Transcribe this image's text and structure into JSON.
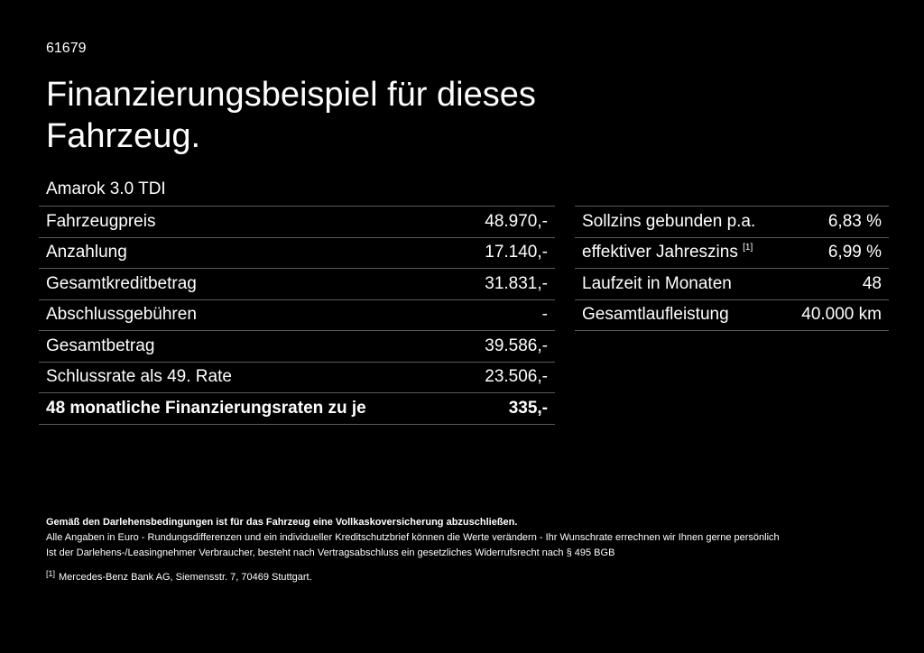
{
  "offer_id": "61679",
  "title": "Finanzierungsbeispiel für dieses Fahrzeug.",
  "model": "Amarok 3.0 TDI",
  "left_table": [
    {
      "label": "Fahrzeugpreis",
      "value": "48.970,-"
    },
    {
      "label": "Anzahlung",
      "value": "17.140,-"
    },
    {
      "label": "Gesamtkreditbetrag",
      "value": "31.831,-"
    },
    {
      "label": "Abschlussgebühren",
      "value": "-"
    },
    {
      "label": "Gesamtbetrag",
      "value": "39.586,-"
    },
    {
      "label": "Schlussrate als 49. Rate",
      "value": "23.506,-"
    },
    {
      "label": "48 monatliche Finanzierungsraten zu je",
      "value": "335,-"
    }
  ],
  "right_table": [
    {
      "label": "Sollzins gebunden p.a.",
      "value": "6,83 %"
    },
    {
      "label": "effektiver Jahreszins",
      "footnote_ref": "[1]",
      "value": "6,99 %"
    },
    {
      "label": "Laufzeit in Monaten",
      "value": "48"
    },
    {
      "label": "Gesamtlaufleistung",
      "value": "40.000 km"
    }
  ],
  "notes": {
    "insurance": "Gemäß den Darlehensbedingungen ist für das Fahrzeug eine Vollkaskoversicherung abzuschließen.",
    "disclaimer": "Alle Angaben in Euro - Rundungsdifferenzen und ein individueller Kreditschutzbrief können die Werte verändern - Ihr Wunschrate errechnen wir Ihnen gerne persönlich",
    "withdrawal": "Ist der Darlehens-/Leasingnehmer Verbraucher, besteht nach Vertragsabschluss ein gesetzliches Widerrufsrecht nach § 495 BGB",
    "footnote_marker": "[1]",
    "footnote": "Mercedes-Benz Bank AG, Siemensstr. 7, 70469 Stuttgart."
  }
}
